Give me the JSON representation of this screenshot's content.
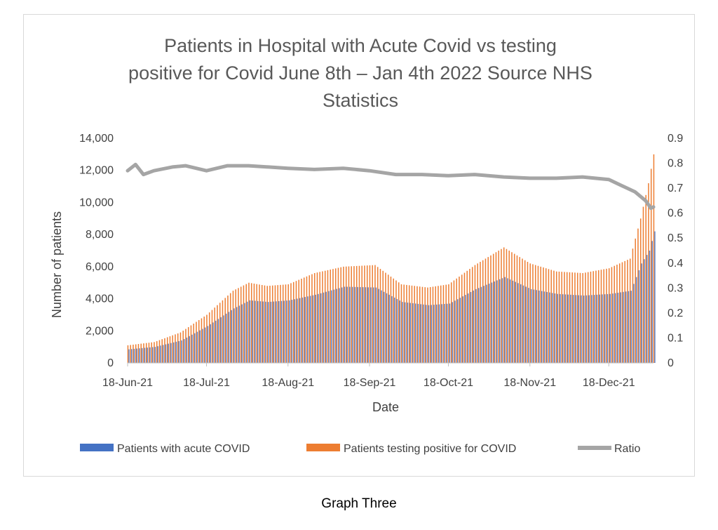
{
  "caption": "Graph Three",
  "chart_data": {
    "type": "bar+line",
    "title_lines": [
      "Patients in Hospital with Acute Covid vs testing",
      "positive for Covid June 8th – Jan 4th 2022 Source NHS",
      "Statistics"
    ],
    "xlabel": "Date",
    "ylabel": "Number of patients",
    "ylim": [
      0,
      14000
    ],
    "y2lim": [
      0,
      0.9
    ],
    "yticks": [
      "0",
      "2,000",
      "4,000",
      "6,000",
      "8,000",
      "10,000",
      "12,000",
      "14,000"
    ],
    "y2ticks": [
      "0",
      "0.1",
      "0.2",
      "0.3",
      "0.4",
      "0.5",
      "0.6",
      "0.7",
      "0.8",
      "0.9"
    ],
    "xticks": [
      {
        "label": "18-Jun-21",
        "date": "2021-06-18"
      },
      {
        "label": "18-Jul-21",
        "date": "2021-07-18"
      },
      {
        "label": "18-Aug-21",
        "date": "2021-08-18"
      },
      {
        "label": "18-Sep-21",
        "date": "2021-09-18"
      },
      {
        "label": "18-Oct-21",
        "date": "2021-10-18"
      },
      {
        "label": "18-Nov-21",
        "date": "2021-11-18"
      },
      {
        "label": "18-Dec-21",
        "date": "2021-12-18"
      }
    ],
    "x_range": [
      "2021-06-18",
      "2022-01-04"
    ],
    "legend_position": "bottom",
    "colors": {
      "acute": "#4472c4",
      "testing": "#ed7d31",
      "ratio": "#a5a5a5"
    },
    "series": [
      {
        "name": "Patients with acute COVID",
        "kind": "bar",
        "axis": "left",
        "points": [
          [
            "2021-06-18",
            850
          ],
          [
            "2021-06-28",
            1000
          ],
          [
            "2021-07-08",
            1400
          ],
          [
            "2021-07-18",
            2300
          ],
          [
            "2021-07-28",
            3400
          ],
          [
            "2021-08-03",
            3900
          ],
          [
            "2021-08-10",
            3800
          ],
          [
            "2021-08-18",
            3900
          ],
          [
            "2021-08-28",
            4250
          ],
          [
            "2021-09-08",
            4750
          ],
          [
            "2021-09-20",
            4700
          ],
          [
            "2021-09-30",
            3800
          ],
          [
            "2021-10-10",
            3600
          ],
          [
            "2021-10-18",
            3700
          ],
          [
            "2021-10-28",
            4600
          ],
          [
            "2021-11-08",
            5350
          ],
          [
            "2021-11-18",
            4600
          ],
          [
            "2021-11-28",
            4300
          ],
          [
            "2021-12-08",
            4200
          ],
          [
            "2021-12-18",
            4300
          ],
          [
            "2021-12-26",
            4500
          ],
          [
            "2021-12-30",
            6200
          ],
          [
            "2022-01-02",
            7000
          ],
          [
            "2022-01-04",
            8200
          ]
        ]
      },
      {
        "name": "Patients testing positive for COVID",
        "kind": "bar",
        "axis": "left",
        "points": [
          [
            "2021-06-18",
            1100
          ],
          [
            "2021-06-28",
            1300
          ],
          [
            "2021-07-08",
            1900
          ],
          [
            "2021-07-18",
            3000
          ],
          [
            "2021-07-28",
            4500
          ],
          [
            "2021-08-03",
            5000
          ],
          [
            "2021-08-10",
            4800
          ],
          [
            "2021-08-18",
            4900
          ],
          [
            "2021-08-28",
            5600
          ],
          [
            "2021-09-08",
            6000
          ],
          [
            "2021-09-20",
            6100
          ],
          [
            "2021-09-30",
            4900
          ],
          [
            "2021-10-10",
            4700
          ],
          [
            "2021-10-18",
            4900
          ],
          [
            "2021-10-28",
            6100
          ],
          [
            "2021-11-08",
            7200
          ],
          [
            "2021-11-18",
            6200
          ],
          [
            "2021-11-28",
            5700
          ],
          [
            "2021-12-08",
            5600
          ],
          [
            "2021-12-18",
            5900
          ],
          [
            "2021-12-26",
            6500
          ],
          [
            "2021-12-30",
            9000
          ],
          [
            "2022-01-02",
            11200
          ],
          [
            "2022-01-04",
            13000
          ]
        ]
      },
      {
        "name": "Ratio",
        "kind": "line",
        "axis": "right",
        "points": [
          [
            "2021-06-18",
            0.77
          ],
          [
            "2021-06-21",
            0.795
          ],
          [
            "2021-06-24",
            0.755
          ],
          [
            "2021-06-28",
            0.77
          ],
          [
            "2021-07-05",
            0.785
          ],
          [
            "2021-07-10",
            0.79
          ],
          [
            "2021-07-18",
            0.77
          ],
          [
            "2021-07-26",
            0.79
          ],
          [
            "2021-08-03",
            0.79
          ],
          [
            "2021-08-18",
            0.78
          ],
          [
            "2021-08-28",
            0.775
          ],
          [
            "2021-09-08",
            0.78
          ],
          [
            "2021-09-18",
            0.77
          ],
          [
            "2021-09-28",
            0.755
          ],
          [
            "2021-10-08",
            0.755
          ],
          [
            "2021-10-18",
            0.75
          ],
          [
            "2021-10-28",
            0.755
          ],
          [
            "2021-11-08",
            0.745
          ],
          [
            "2021-11-18",
            0.74
          ],
          [
            "2021-11-28",
            0.74
          ],
          [
            "2021-12-08",
            0.745
          ],
          [
            "2021-12-18",
            0.735
          ],
          [
            "2021-12-23",
            0.71
          ],
          [
            "2021-12-28",
            0.685
          ],
          [
            "2022-01-01",
            0.65
          ],
          [
            "2022-01-03",
            0.62
          ],
          [
            "2022-01-04",
            0.625
          ]
        ]
      }
    ]
  }
}
